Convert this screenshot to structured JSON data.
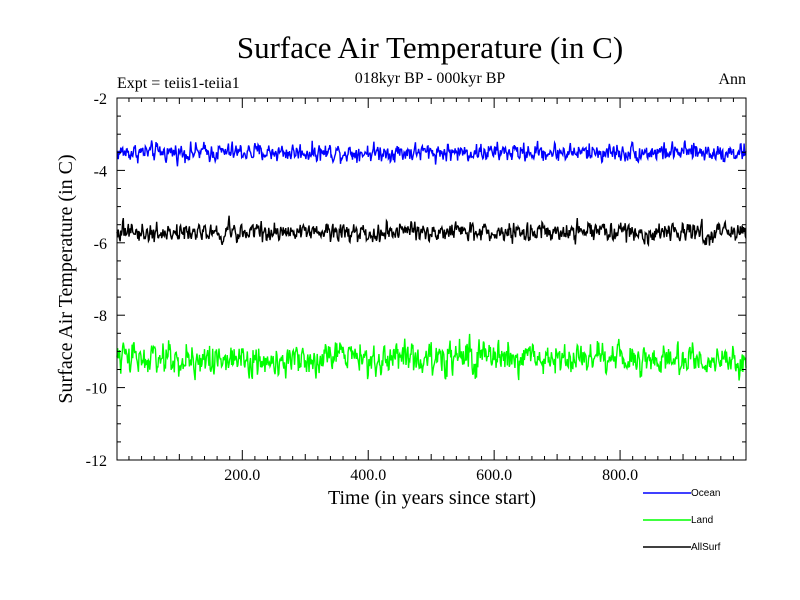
{
  "chart_data": {
    "type": "line",
    "title": "Surface Air Temperature (in C)",
    "subtitle": "018kyr BP - 000kyr BP",
    "left_annotation": "Expt = teiis1-teiia1",
    "right_annotation": "Ann",
    "xlabel": "Time (in years since start)",
    "ylabel": "Surface Air Temperature (in C)",
    "xlim": [
      1,
      1000
    ],
    "ylim": [
      -12,
      -2
    ],
    "x_ticks": [
      200,
      400,
      600,
      800
    ],
    "x_tick_labels": [
      "200.0",
      "400.0",
      "600.0",
      "800.0"
    ],
    "y_ticks": [
      -2,
      -4,
      -6,
      -8,
      -10,
      -12
    ],
    "y_tick_labels": [
      "-2",
      "-4",
      "-6",
      "-8",
      "-10",
      "-12"
    ],
    "grid": false,
    "legend_position": "bottom-right, below plot",
    "series": [
      {
        "name": "Ocean",
        "color": "#0000ff",
        "mean": -3.5,
        "amplitude": 0.2,
        "min": -4.0,
        "max": -3.1
      },
      {
        "name": "Land",
        "color": "#00ff00",
        "mean": -9.2,
        "amplitude": 0.35,
        "min": -10.1,
        "max": -8.5
      },
      {
        "name": "AllSurf",
        "color": "#000000",
        "mean": -5.7,
        "amplitude": 0.22,
        "min": -6.3,
        "max": -5.2
      }
    ]
  }
}
